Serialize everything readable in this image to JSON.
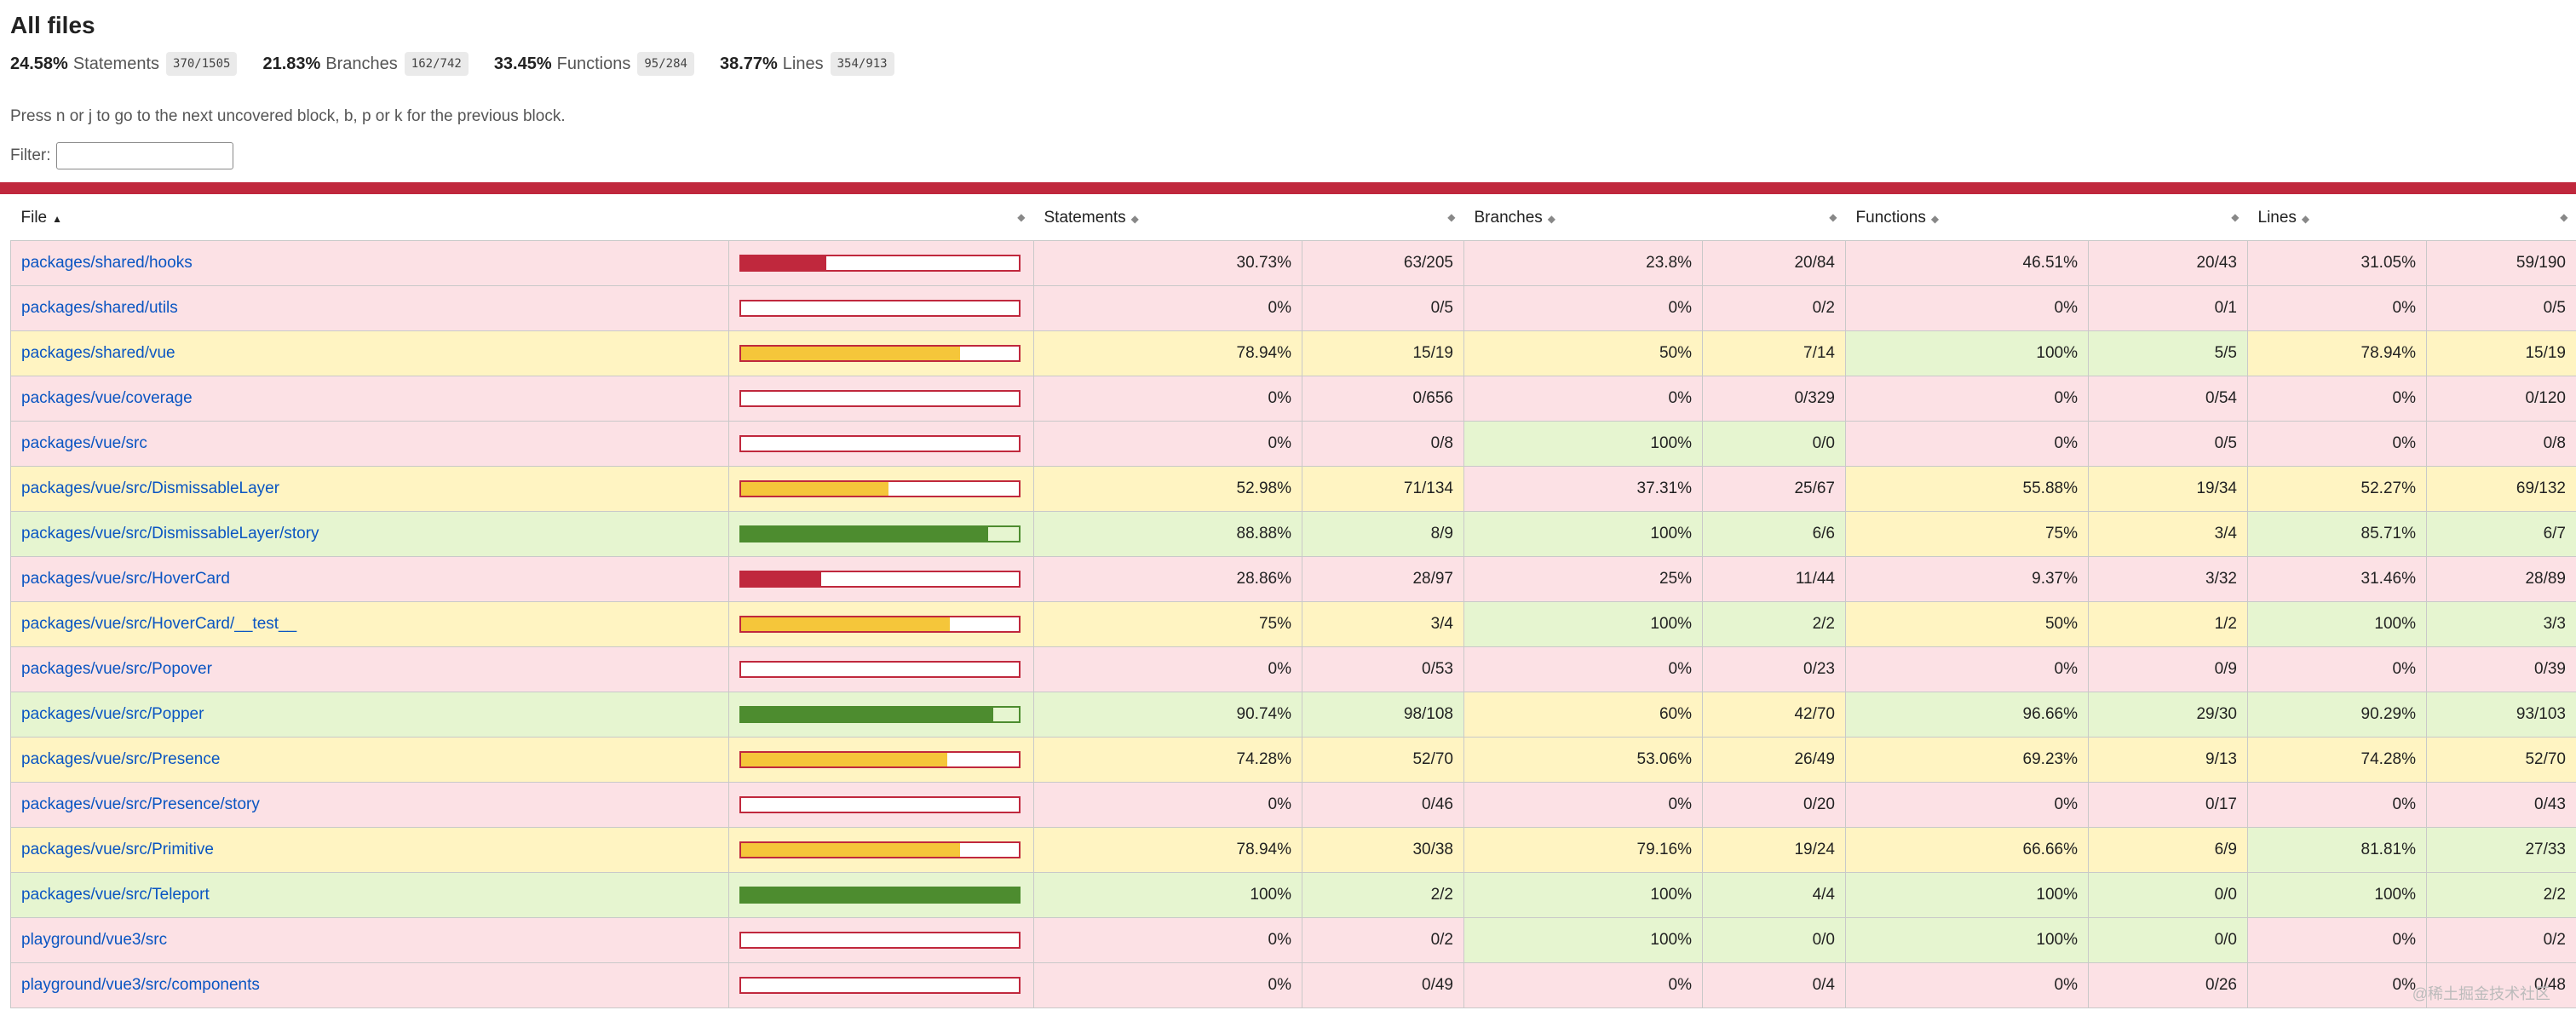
{
  "title": "All files",
  "summary": [
    {
      "pct": "24.58%",
      "label": "Statements",
      "fraction": "370/1505"
    },
    {
      "pct": "21.83%",
      "label": "Branches",
      "fraction": "162/742"
    },
    {
      "pct": "33.45%",
      "label": "Functions",
      "fraction": "95/284"
    },
    {
      "pct": "38.77%",
      "label": "Lines",
      "fraction": "354/913"
    }
  ],
  "hint": "Press n or j to go to the next uncovered block, b, p or k for the previous block.",
  "filter": {
    "label": "Filter:",
    "value": ""
  },
  "columns": {
    "file": "File",
    "statements": "Statements",
    "branches": "Branches",
    "functions": "Functions",
    "lines": "Lines"
  },
  "icons": {
    "sort_active": "sort-ascending-icon",
    "sort": "sort-icon"
  },
  "colors": {
    "low": "#fce1e5",
    "medium": "#fff4c2",
    "high": "#e6f5d0",
    "bar_low": "#c0283d",
    "bar_medium": "#f5c63a",
    "bar_high": "#4d8c2f",
    "link": "#0a55c2"
  },
  "rows": [
    {
      "file": "packages/shared/hooks",
      "bar": 30.73,
      "stmt_pct": "30.73%",
      "stmt_frac": "63/205",
      "stmt_c": "low",
      "br_pct": "23.8%",
      "br_frac": "20/84",
      "br_c": "low",
      "fn_pct": "46.51%",
      "fn_frac": "20/43",
      "fn_c": "low",
      "ln_pct": "31.05%",
      "ln_frac": "59/190",
      "ln_c": "low"
    },
    {
      "file": "packages/shared/utils",
      "bar": 0,
      "stmt_pct": "0%",
      "stmt_frac": "0/5",
      "stmt_c": "low",
      "br_pct": "0%",
      "br_frac": "0/2",
      "br_c": "low",
      "fn_pct": "0%",
      "fn_frac": "0/1",
      "fn_c": "low",
      "ln_pct": "0%",
      "ln_frac": "0/5",
      "ln_c": "low"
    },
    {
      "file": "packages/shared/vue",
      "bar": 78.94,
      "stmt_pct": "78.94%",
      "stmt_frac": "15/19",
      "stmt_c": "medium",
      "br_pct": "50%",
      "br_frac": "7/14",
      "br_c": "medium",
      "fn_pct": "100%",
      "fn_frac": "5/5",
      "fn_c": "high",
      "ln_pct": "78.94%",
      "ln_frac": "15/19",
      "ln_c": "medium"
    },
    {
      "file": "packages/vue/coverage",
      "bar": 0,
      "stmt_pct": "0%",
      "stmt_frac": "0/656",
      "stmt_c": "low",
      "br_pct": "0%",
      "br_frac": "0/329",
      "br_c": "low",
      "fn_pct": "0%",
      "fn_frac": "0/54",
      "fn_c": "low",
      "ln_pct": "0%",
      "ln_frac": "0/120",
      "ln_c": "low"
    },
    {
      "file": "packages/vue/src",
      "bar": 0,
      "stmt_pct": "0%",
      "stmt_frac": "0/8",
      "stmt_c": "low",
      "br_pct": "100%",
      "br_frac": "0/0",
      "br_c": "high",
      "fn_pct": "0%",
      "fn_frac": "0/5",
      "fn_c": "low",
      "ln_pct": "0%",
      "ln_frac": "0/8",
      "ln_c": "low"
    },
    {
      "file": "packages/vue/src/DismissableLayer",
      "bar": 52.98,
      "stmt_pct": "52.98%",
      "stmt_frac": "71/134",
      "stmt_c": "medium",
      "br_pct": "37.31%",
      "br_frac": "25/67",
      "br_c": "low",
      "fn_pct": "55.88%",
      "fn_frac": "19/34",
      "fn_c": "medium",
      "ln_pct": "52.27%",
      "ln_frac": "69/132",
      "ln_c": "medium"
    },
    {
      "file": "packages/vue/src/DismissableLayer/story",
      "bar": 88.88,
      "stmt_pct": "88.88%",
      "stmt_frac": "8/9",
      "stmt_c": "high",
      "br_pct": "100%",
      "br_frac": "6/6",
      "br_c": "high",
      "fn_pct": "75%",
      "fn_frac": "3/4",
      "fn_c": "medium",
      "ln_pct": "85.71%",
      "ln_frac": "6/7",
      "ln_c": "high"
    },
    {
      "file": "packages/vue/src/HoverCard",
      "bar": 28.86,
      "stmt_pct": "28.86%",
      "stmt_frac": "28/97",
      "stmt_c": "low",
      "br_pct": "25%",
      "br_frac": "11/44",
      "br_c": "low",
      "fn_pct": "9.37%",
      "fn_frac": "3/32",
      "fn_c": "low",
      "ln_pct": "31.46%",
      "ln_frac": "28/89",
      "ln_c": "low"
    },
    {
      "file": "packages/vue/src/HoverCard/__test__",
      "bar": 75,
      "stmt_pct": "75%",
      "stmt_frac": "3/4",
      "stmt_c": "medium",
      "br_pct": "100%",
      "br_frac": "2/2",
      "br_c": "high",
      "fn_pct": "50%",
      "fn_frac": "1/2",
      "fn_c": "medium",
      "ln_pct": "100%",
      "ln_frac": "3/3",
      "ln_c": "high"
    },
    {
      "file": "packages/vue/src/Popover",
      "bar": 0,
      "stmt_pct": "0%",
      "stmt_frac": "0/53",
      "stmt_c": "low",
      "br_pct": "0%",
      "br_frac": "0/23",
      "br_c": "low",
      "fn_pct": "0%",
      "fn_frac": "0/9",
      "fn_c": "low",
      "ln_pct": "0%",
      "ln_frac": "0/39",
      "ln_c": "low"
    },
    {
      "file": "packages/vue/src/Popper",
      "bar": 90.74,
      "stmt_pct": "90.74%",
      "stmt_frac": "98/108",
      "stmt_c": "high",
      "br_pct": "60%",
      "br_frac": "42/70",
      "br_c": "medium",
      "fn_pct": "96.66%",
      "fn_frac": "29/30",
      "fn_c": "high",
      "ln_pct": "90.29%",
      "ln_frac": "93/103",
      "ln_c": "high"
    },
    {
      "file": "packages/vue/src/Presence",
      "bar": 74.28,
      "stmt_pct": "74.28%",
      "stmt_frac": "52/70",
      "stmt_c": "medium",
      "br_pct": "53.06%",
      "br_frac": "26/49",
      "br_c": "medium",
      "fn_pct": "69.23%",
      "fn_frac": "9/13",
      "fn_c": "medium",
      "ln_pct": "74.28%",
      "ln_frac": "52/70",
      "ln_c": "medium"
    },
    {
      "file": "packages/vue/src/Presence/story",
      "bar": 0,
      "stmt_pct": "0%",
      "stmt_frac": "0/46",
      "stmt_c": "low",
      "br_pct": "0%",
      "br_frac": "0/20",
      "br_c": "low",
      "fn_pct": "0%",
      "fn_frac": "0/17",
      "fn_c": "low",
      "ln_pct": "0%",
      "ln_frac": "0/43",
      "ln_c": "low"
    },
    {
      "file": "packages/vue/src/Primitive",
      "bar": 78.94,
      "stmt_pct": "78.94%",
      "stmt_frac": "30/38",
      "stmt_c": "medium",
      "br_pct": "79.16%",
      "br_frac": "19/24",
      "br_c": "medium",
      "fn_pct": "66.66%",
      "fn_frac": "6/9",
      "fn_c": "medium",
      "ln_pct": "81.81%",
      "ln_frac": "27/33",
      "ln_c": "high"
    },
    {
      "file": "packages/vue/src/Teleport",
      "bar": 100,
      "stmt_pct": "100%",
      "stmt_frac": "2/2",
      "stmt_c": "high",
      "br_pct": "100%",
      "br_frac": "4/4",
      "br_c": "high",
      "fn_pct": "100%",
      "fn_frac": "0/0",
      "fn_c": "high",
      "ln_pct": "100%",
      "ln_frac": "2/2",
      "ln_c": "high"
    },
    {
      "file": "playground/vue3/src",
      "bar": 0,
      "stmt_pct": "0%",
      "stmt_frac": "0/2",
      "stmt_c": "low",
      "br_pct": "100%",
      "br_frac": "0/0",
      "br_c": "high",
      "fn_pct": "100%",
      "fn_frac": "0/0",
      "fn_c": "high",
      "ln_pct": "0%",
      "ln_frac": "0/2",
      "ln_c": "low"
    },
    {
      "file": "playground/vue3/src/components",
      "bar": 0,
      "stmt_pct": "0%",
      "stmt_frac": "0/49",
      "stmt_c": "low",
      "br_pct": "0%",
      "br_frac": "0/4",
      "br_c": "low",
      "fn_pct": "0%",
      "fn_frac": "0/26",
      "fn_c": "low",
      "ln_pct": "0%",
      "ln_frac": "0/48",
      "ln_c": "low"
    }
  ],
  "watermark": "@稀土掘金技术社区"
}
